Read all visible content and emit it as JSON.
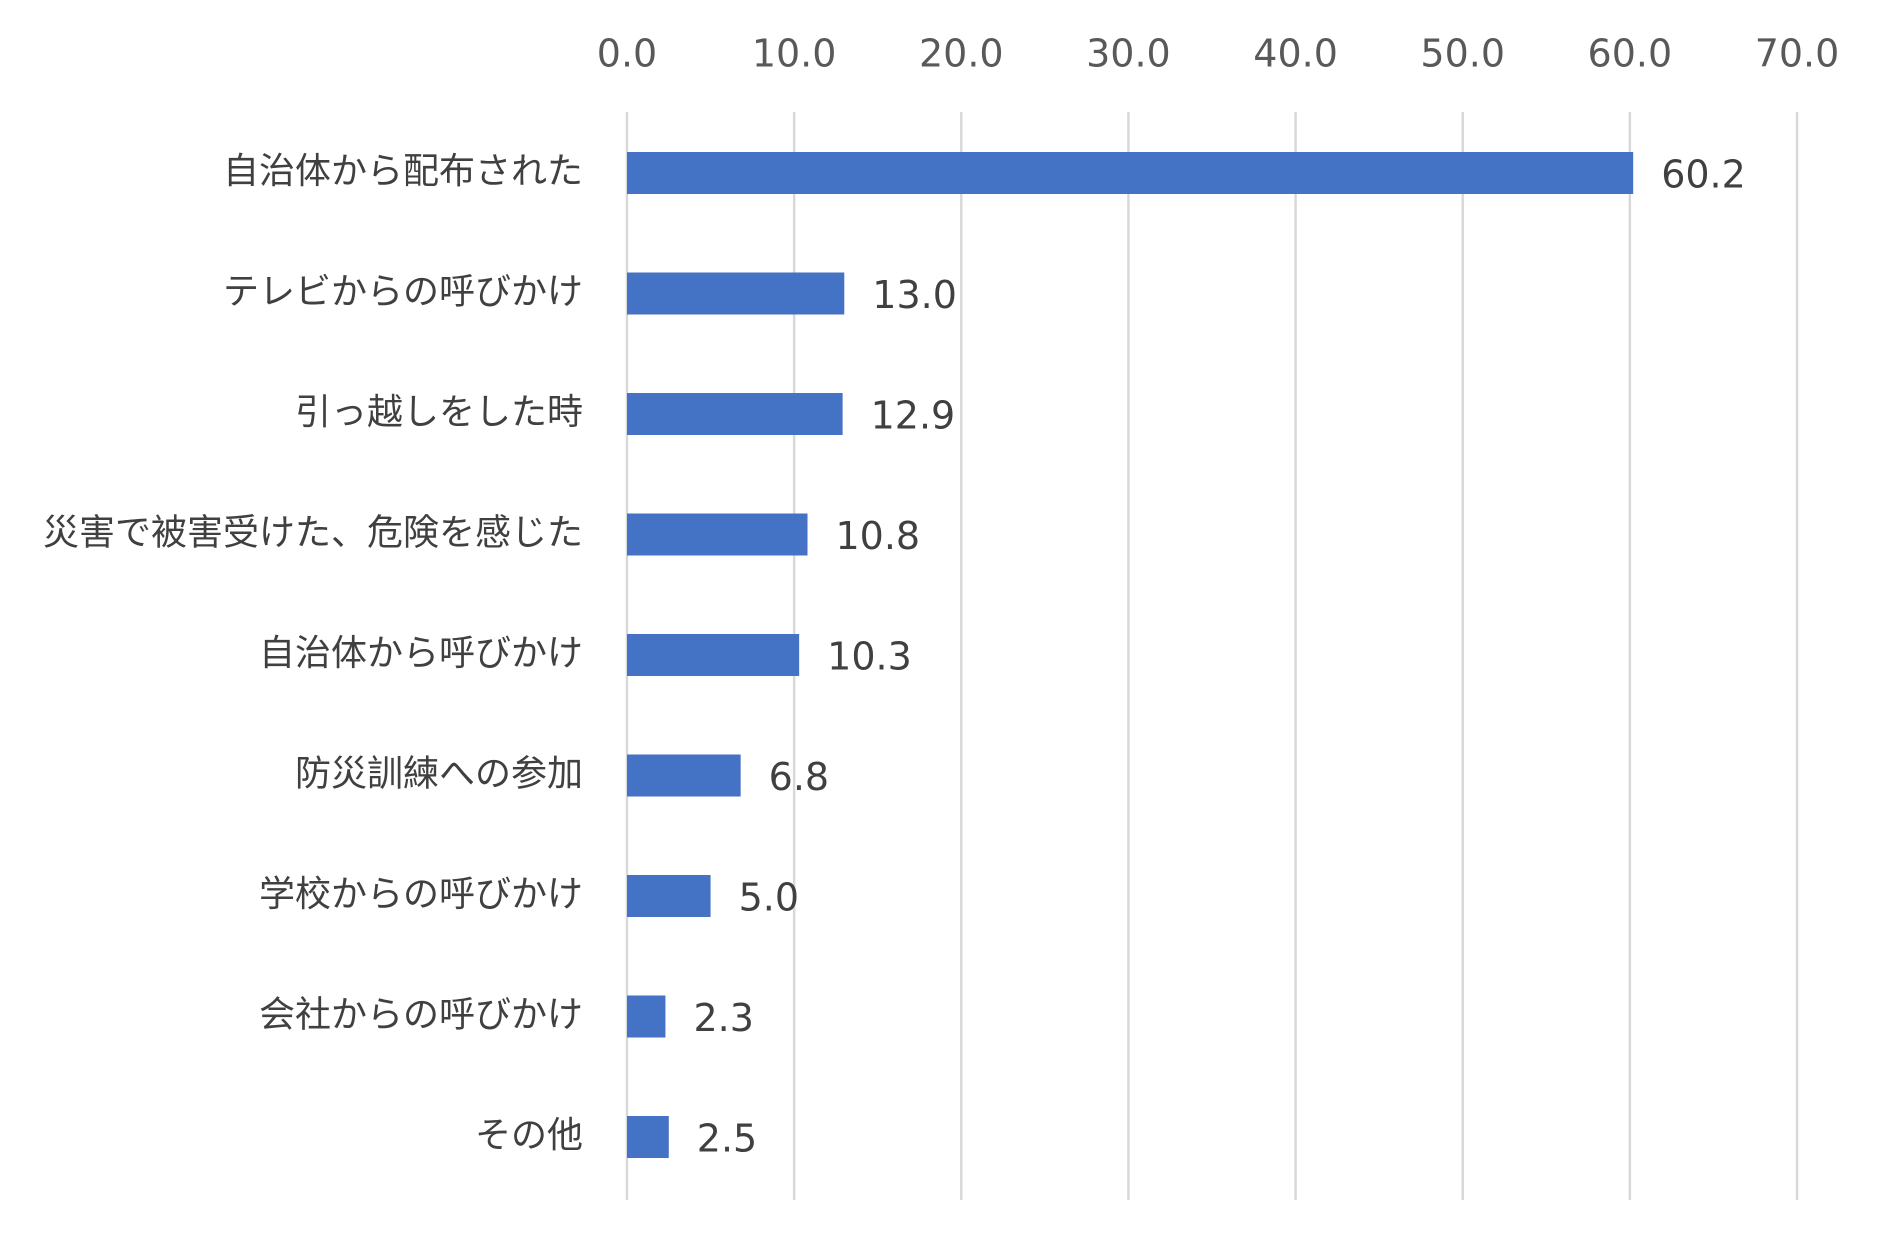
{
  "chart_data": {
    "type": "bar",
    "orientation": "horizontal",
    "categories": [
      "自治体から配布された",
      "テレビからの呼びかけ",
      "引っ越しをした時",
      "災害で被害受けた、危険を感じた",
      "自治体から呼びかけ",
      "防災訓練への参加",
      "学校からの呼びかけ",
      "会社からの呼びかけ",
      "その他"
    ],
    "values": [
      60.2,
      13.0,
      12.9,
      10.8,
      10.3,
      6.8,
      5.0,
      2.3,
      2.5
    ],
    "value_labels": [
      "60.2",
      "13.0",
      "12.9",
      "10.8",
      "10.3",
      "6.8",
      "5.0",
      "2.3",
      "2.5"
    ],
    "xlim": [
      0,
      70
    ],
    "x_ticks": [
      0,
      10,
      20,
      30,
      40,
      50,
      60,
      70
    ],
    "x_tick_labels": [
      "0.0",
      "10.0",
      "20.0",
      "30.0",
      "40.0",
      "50.0",
      "60.0",
      "70.0"
    ],
    "x_axis_position": "top",
    "grid": true,
    "legend": "none",
    "bar_color": "#4472c4",
    "grid_color": "#d9d9d9"
  }
}
